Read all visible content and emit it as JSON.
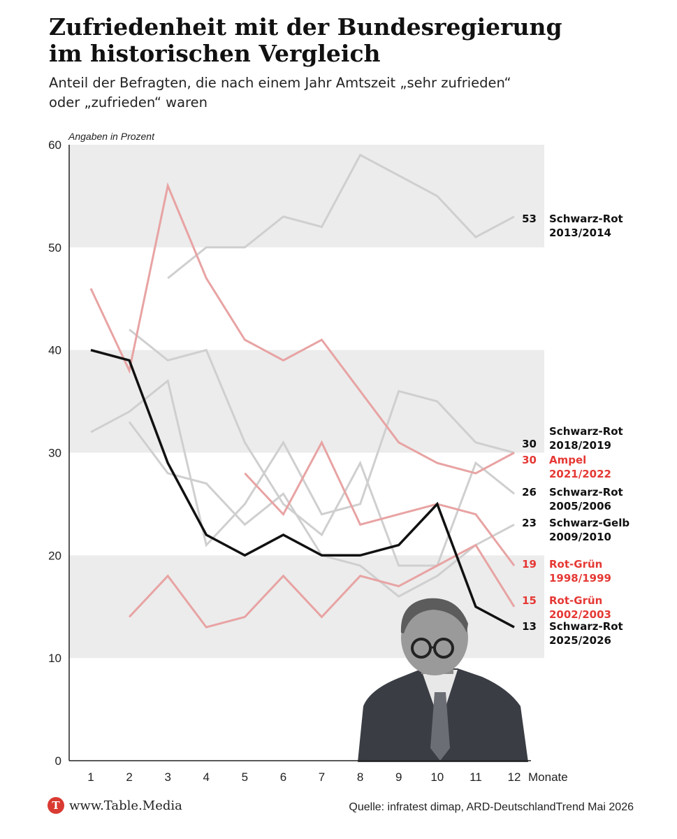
{
  "header": {
    "title_lines": [
      "Zufriedenheit mit der Bundesregierung",
      "im historischen Vergleich"
    ],
    "subtitle_lines": [
      "Anteil der Befragten, die nach einem Jahr Amtszeit „sehr zufrieden“",
      "oder „zufrieden“ waren"
    ]
  },
  "footer": {
    "brand_logo_letter": "T",
    "brand_name": "www.Table.Media",
    "source": "Quelle: infratest dimap, ARD-DeutschlandTrend Mai 2026"
  },
  "colors": {
    "gray_line": "#cfcfcf",
    "red_line": "#e8a3a3",
    "red_label": "#e53935",
    "highlight_line": "#111111",
    "band": "#ececec"
  },
  "chart_data": {
    "type": "line",
    "unit_note": "Angaben in Prozent",
    "x_unit_label": "Monate",
    "x_ticks": [
      1,
      2,
      3,
      4,
      5,
      6,
      7,
      8,
      9,
      10,
      11,
      12
    ],
    "y_ticks": [
      0,
      10,
      20,
      30,
      40,
      50,
      60
    ],
    "ylim": [
      0,
      60
    ],
    "xlim": [
      1,
      12
    ],
    "grid": "alternating horizontal bands",
    "series": [
      {
        "name_lines": [
          "Schwarz-Rot",
          "2013/2014"
        ],
        "end_value": "53",
        "group": "gray",
        "points": [
          [
            3,
            47
          ],
          [
            4,
            50
          ],
          [
            5,
            50
          ],
          [
            6,
            53
          ],
          [
            7,
            52
          ],
          [
            8,
            59
          ],
          [
            9,
            57
          ],
          [
            10,
            55
          ],
          [
            11,
            51
          ],
          [
            12,
            53
          ]
        ]
      },
      {
        "name_lines": [
          "Schwarz-Rot",
          "2018/2019"
        ],
        "end_value": "30",
        "group": "gray",
        "points": [
          [
            1,
            32
          ],
          [
            2,
            34
          ],
          [
            3,
            37
          ],
          [
            4,
            21
          ],
          [
            5,
            25
          ],
          [
            6,
            31
          ],
          [
            7,
            24
          ],
          [
            8,
            25
          ],
          [
            9,
            36
          ],
          [
            10,
            35
          ],
          [
            11,
            31
          ],
          [
            12,
            30
          ]
        ]
      },
      {
        "name_lines": [
          "Ampel",
          "2021/2022"
        ],
        "end_value": "30",
        "group": "red",
        "points": [
          [
            1,
            46
          ],
          [
            2,
            38
          ],
          [
            3,
            56
          ],
          [
            4,
            47
          ],
          [
            5,
            41
          ],
          [
            6,
            39
          ],
          [
            7,
            41
          ],
          [
            8,
            36
          ],
          [
            9,
            31
          ],
          [
            10,
            29
          ],
          [
            11,
            28
          ],
          [
            12,
            30
          ]
        ]
      },
      {
        "name_lines": [
          "Schwarz-Rot",
          "2005/2006"
        ],
        "end_value": "26",
        "group": "gray",
        "points": [
          [
            2,
            42
          ],
          [
            3,
            39
          ],
          [
            4,
            40
          ],
          [
            5,
            31
          ],
          [
            6,
            25
          ],
          [
            7,
            22
          ],
          [
            8,
            29
          ],
          [
            9,
            19
          ],
          [
            10,
            19
          ],
          [
            11,
            29
          ],
          [
            12,
            26
          ]
        ]
      },
      {
        "name_lines": [
          "Schwarz-Gelb",
          "2009/2010"
        ],
        "end_value": "23",
        "group": "gray",
        "points": [
          [
            2,
            33
          ],
          [
            3,
            28
          ],
          [
            4,
            27
          ],
          [
            5,
            23
          ],
          [
            6,
            26
          ],
          [
            7,
            20
          ],
          [
            8,
            19
          ],
          [
            9,
            16
          ],
          [
            10,
            18
          ],
          [
            11,
            21
          ],
          [
            12,
            23
          ]
        ]
      },
      {
        "name_lines": [
          "Rot-Grün",
          "1998/1999"
        ],
        "end_value": "19",
        "group": "red",
        "points": [
          [
            5,
            28
          ],
          [
            6,
            24
          ],
          [
            7,
            31
          ],
          [
            8,
            23
          ],
          [
            9,
            24
          ],
          [
            10,
            25
          ],
          [
            11,
            24
          ],
          [
            12,
            19
          ]
        ]
      },
      {
        "name_lines": [
          "Rot-Grün",
          "2002/2003"
        ],
        "end_value": "15",
        "group": "red",
        "points": [
          [
            2,
            14
          ],
          [
            3,
            18
          ],
          [
            4,
            13
          ],
          [
            5,
            14
          ],
          [
            6,
            18
          ],
          [
            7,
            14
          ],
          [
            8,
            18
          ],
          [
            9,
            17
          ],
          [
            10,
            19
          ],
          [
            11,
            21
          ],
          [
            12,
            15
          ]
        ]
      },
      {
        "name_lines": [
          "Schwarz-Rot",
          "2025/2026"
        ],
        "end_value": "13",
        "group": "highlight",
        "points": [
          [
            1,
            40
          ],
          [
            2,
            39
          ],
          [
            3,
            29
          ],
          [
            4,
            22
          ],
          [
            5,
            20
          ],
          [
            6,
            22
          ],
          [
            7,
            20
          ],
          [
            8,
            20
          ],
          [
            9,
            21
          ],
          [
            10,
            25
          ],
          [
            11,
            15
          ],
          [
            12,
            13
          ]
        ]
      }
    ]
  }
}
